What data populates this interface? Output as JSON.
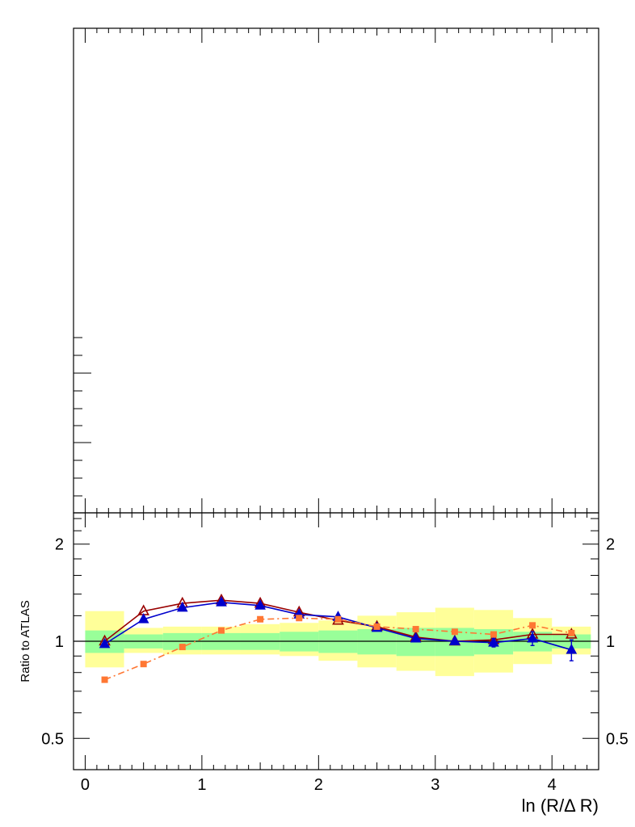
{
  "chart_data": [
    {
      "type": "line",
      "panel": "upper",
      "title": "",
      "xlabel": "",
      "ylabel": "",
      "series": [],
      "note": "upper panel frame with tick marks only; no data visible"
    },
    {
      "type": "line",
      "panel": "ratio",
      "xlabel": "ln (R/Δ R)",
      "ylabel": "Ratio to ATLAS",
      "xlim": [
        -0.1,
        4.4
      ],
      "ylim": [
        0.4,
        2.5
      ],
      "y_scale": "log",
      "x_ticks": [
        "0",
        "1",
        "2",
        "3",
        "4"
      ],
      "y_ticks": [
        "0.5",
        "1",
        "2"
      ],
      "reference_line": 1,
      "grid": false,
      "uncertainty_bands": {
        "bin_edges": [
          0,
          0.333,
          0.667,
          1.0,
          1.333,
          1.667,
          2.0,
          2.333,
          2.667,
          3.0,
          3.333,
          3.667,
          4.0,
          4.333
        ],
        "inner": {
          "color": "#99ff99",
          "low": [
            0.92,
            0.95,
            0.94,
            0.94,
            0.94,
            0.93,
            0.92,
            0.91,
            0.9,
            0.9,
            0.91,
            0.93,
            0.95
          ],
          "high": [
            1.08,
            1.05,
            1.06,
            1.06,
            1.06,
            1.07,
            1.08,
            1.09,
            1.1,
            1.1,
            1.09,
            1.07,
            1.05
          ]
        },
        "outer": {
          "color": "#ffff99",
          "low": [
            0.83,
            0.92,
            0.91,
            0.91,
            0.91,
            0.9,
            0.87,
            0.83,
            0.81,
            0.78,
            0.8,
            0.85,
            0.91
          ],
          "high": [
            1.24,
            1.1,
            1.11,
            1.11,
            1.13,
            1.14,
            1.16,
            1.2,
            1.23,
            1.27,
            1.25,
            1.18,
            1.11
          ]
        }
      },
      "x": [
        0.167,
        0.5,
        0.833,
        1.167,
        1.5,
        1.833,
        2.167,
        2.5,
        2.833,
        3.167,
        3.5,
        3.833,
        4.167
      ],
      "series": [
        {
          "color": "#990000",
          "marker": "open-triangle",
          "line": "solid",
          "values": [
            1.0,
            1.24,
            1.31,
            1.34,
            1.31,
            1.23,
            1.16,
            1.11,
            1.03,
            1.0,
            1.01,
            1.05,
            1.05
          ]
        },
        {
          "color": "#0000cc",
          "marker": "filled-triangle",
          "line": "solid",
          "values": [
            0.98,
            1.17,
            1.27,
            1.32,
            1.29,
            1.21,
            1.19,
            1.1,
            1.02,
            1.0,
            0.99,
            1.02,
            0.94
          ],
          "errors": [
            0.02,
            0.01,
            0.01,
            0.01,
            0.01,
            0.01,
            0.01,
            0.01,
            0.02,
            0.02,
            0.03,
            0.05,
            0.07
          ]
        },
        {
          "color": "#ff7733",
          "marker": "square",
          "line": "dash-dot",
          "values": [
            0.76,
            0.85,
            0.96,
            1.08,
            1.17,
            1.18,
            1.17,
            1.11,
            1.09,
            1.07,
            1.05,
            1.12,
            1.06
          ]
        }
      ]
    }
  ]
}
